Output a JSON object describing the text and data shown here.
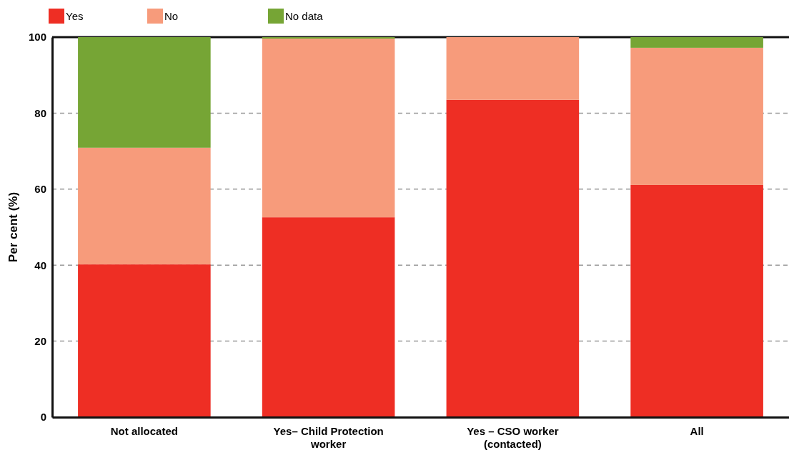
{
  "chart_data": {
    "type": "bar",
    "stacked": true,
    "ylabel": "Per cent (%)",
    "categories": [
      "Not allocated",
      "Yes– Child Protection worker",
      "Yes – CSO worker (contacted)",
      "All"
    ],
    "series": [
      {
        "name": "Yes",
        "color": "#ee2e24",
        "values": [
          40.2,
          52.6,
          83.5,
          61.1
        ]
      },
      {
        "name": "No",
        "color": "#f79b7b",
        "values": [
          30.7,
          47.0,
          16.5,
          36.1
        ]
      },
      {
        "name": "No data",
        "color": "#76a535",
        "values": [
          29.1,
          0.4,
          0,
          2.8
        ]
      }
    ],
    "ylim": [
      0,
      100
    ],
    "yticks": [
      0,
      20,
      40,
      60,
      80,
      100
    ],
    "grid": "y",
    "legend": "top left"
  }
}
